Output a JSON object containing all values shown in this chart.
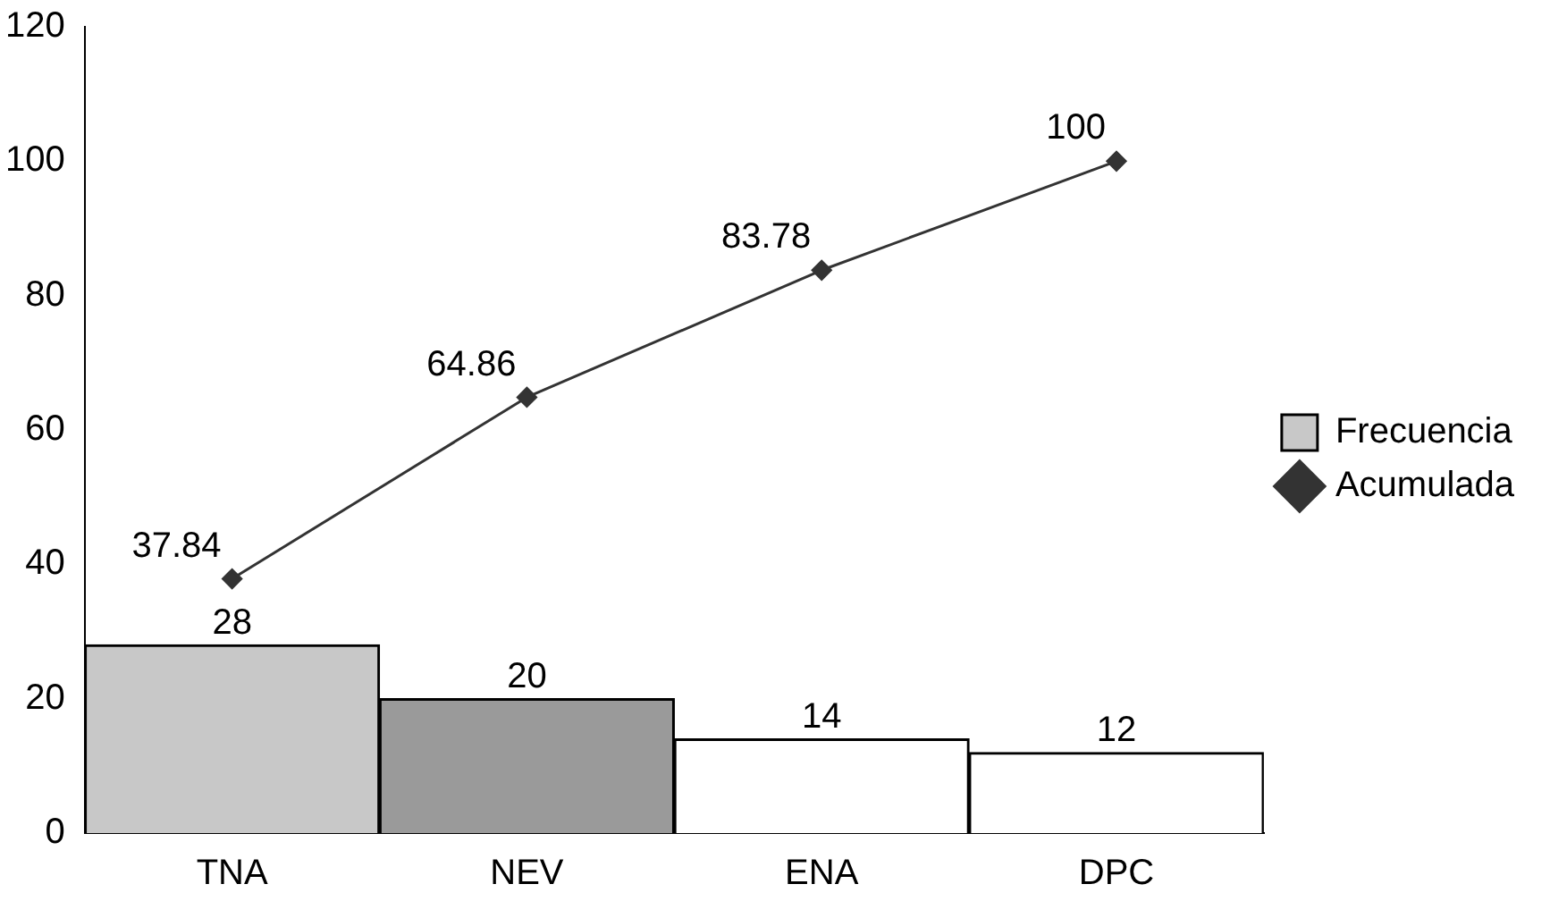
{
  "chart_data": {
    "type": "bar",
    "categories": [
      "TNA",
      "NEV",
      "ENA",
      "DPC"
    ],
    "series": [
      {
        "name": "Frecuencia",
        "colors": [
          "#c8c8c8",
          "#9a9a9a",
          "#ffffff",
          "#ffffff"
        ],
        "color": "#c8c8c8",
        "values": [
          28,
          20,
          14,
          12
        ]
      },
      {
        "name": "Acumulada",
        "type": "line",
        "color": "#333333",
        "values": [
          37.84,
          64.86,
          83.78,
          100
        ],
        "marker": "diamond"
      }
    ],
    "ylim": [
      0,
      120
    ],
    "yticks": [
      0,
      20,
      40,
      60,
      80,
      100,
      120
    ],
    "grid": false,
    "legend": "right",
    "data_labels": true
  }
}
